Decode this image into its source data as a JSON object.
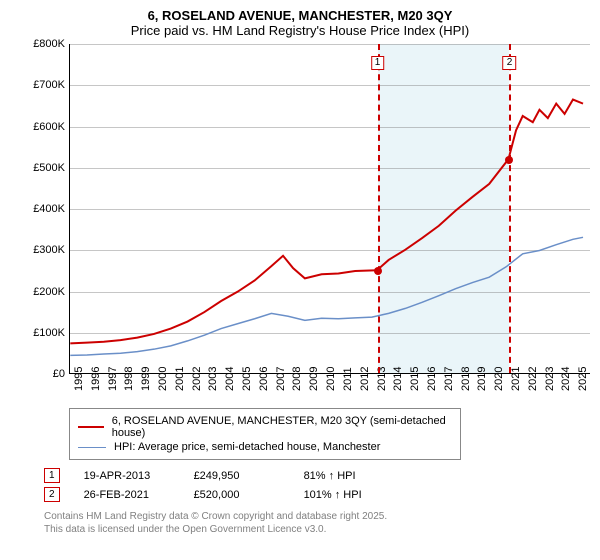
{
  "title": {
    "line1": "6, ROSELAND AVENUE, MANCHESTER, M20 3QY",
    "line2": "Price paid vs. HM Land Registry's House Price Index (HPI)"
  },
  "chart": {
    "type": "line",
    "background_color": "#ffffff",
    "grid_color": "#808080",
    "axis_color": "#000000",
    "xlim": [
      1995,
      2026
    ],
    "ylim": [
      0,
      800000
    ],
    "ytick_step": 100000,
    "ytick_labels": [
      "£0",
      "£100K",
      "£200K",
      "£300K",
      "£400K",
      "£500K",
      "£600K",
      "£700K",
      "£800K"
    ],
    "xticks": [
      1995,
      1996,
      1997,
      1998,
      1999,
      2000,
      2001,
      2002,
      2003,
      2004,
      2005,
      2006,
      2007,
      2008,
      2009,
      2010,
      2011,
      2012,
      2013,
      2014,
      2015,
      2016,
      2017,
      2018,
      2019,
      2020,
      2021,
      2022,
      2023,
      2024,
      2025
    ],
    "highlight_band": {
      "from": 2013.3,
      "to": 2021.15,
      "color": "#d6ecf3"
    },
    "series": [
      {
        "id": "price_paid",
        "label": "6, ROSELAND AVENUE, MANCHESTER, M20 3QY (semi-detached house)",
        "color": "#cc0000",
        "line_width": 2,
        "points": [
          [
            1995,
            72000
          ],
          [
            1996,
            74000
          ],
          [
            1997,
            76000
          ],
          [
            1998,
            80000
          ],
          [
            1999,
            86000
          ],
          [
            2000,
            95000
          ],
          [
            2001,
            108000
          ],
          [
            2002,
            125000
          ],
          [
            2003,
            148000
          ],
          [
            2004,
            175000
          ],
          [
            2005,
            198000
          ],
          [
            2006,
            225000
          ],
          [
            2007,
            260000
          ],
          [
            2007.7,
            285000
          ],
          [
            2008.3,
            255000
          ],
          [
            2009,
            230000
          ],
          [
            2010,
            240000
          ],
          [
            2011,
            242000
          ],
          [
            2012,
            248000
          ],
          [
            2013.3,
            249950
          ],
          [
            2014,
            275000
          ],
          [
            2015,
            300000
          ],
          [
            2016,
            328000
          ],
          [
            2017,
            358000
          ],
          [
            2018,
            395000
          ],
          [
            2019,
            428000
          ],
          [
            2020,
            460000
          ],
          [
            2021.15,
            520000
          ],
          [
            2021.6,
            590000
          ],
          [
            2022,
            625000
          ],
          [
            2022.6,
            610000
          ],
          [
            2023,
            640000
          ],
          [
            2023.5,
            620000
          ],
          [
            2024,
            655000
          ],
          [
            2024.5,
            630000
          ],
          [
            2025,
            665000
          ],
          [
            2025.6,
            655000
          ]
        ]
      },
      {
        "id": "hpi",
        "label": "HPI: Average price, semi-detached house, Manchester",
        "color": "#6a8fc8",
        "line_width": 1.5,
        "points": [
          [
            1995,
            43000
          ],
          [
            1996,
            44000
          ],
          [
            1997,
            46000
          ],
          [
            1998,
            48000
          ],
          [
            1999,
            52000
          ],
          [
            2000,
            58000
          ],
          [
            2001,
            66000
          ],
          [
            2002,
            78000
          ],
          [
            2003,
            92000
          ],
          [
            2004,
            108000
          ],
          [
            2005,
            120000
          ],
          [
            2006,
            132000
          ],
          [
            2007,
            145000
          ],
          [
            2008,
            138000
          ],
          [
            2009,
            128000
          ],
          [
            2010,
            133000
          ],
          [
            2011,
            132000
          ],
          [
            2012,
            134000
          ],
          [
            2013,
            136000
          ],
          [
            2014,
            145000
          ],
          [
            2015,
            157000
          ],
          [
            2016,
            172000
          ],
          [
            2017,
            188000
          ],
          [
            2018,
            205000
          ],
          [
            2019,
            220000
          ],
          [
            2020,
            233000
          ],
          [
            2021,
            258000
          ],
          [
            2022,
            290000
          ],
          [
            2023,
            298000
          ],
          [
            2024,
            312000
          ],
          [
            2025,
            325000
          ],
          [
            2025.6,
            330000
          ]
        ]
      }
    ],
    "vlines": [
      {
        "x": 2013.3,
        "label": "1",
        "marker_y": 249950
      },
      {
        "x": 2021.15,
        "label": "2",
        "marker_y": 520000
      }
    ]
  },
  "legend": {
    "rows": [
      {
        "color": "#cc0000",
        "width": 2,
        "text": "6, ROSELAND AVENUE, MANCHESTER, M20 3QY (semi-detached house)"
      },
      {
        "color": "#6a8fc8",
        "width": 1.5,
        "text": "HPI: Average price, semi-detached house, Manchester"
      }
    ]
  },
  "data_points": [
    {
      "idx": "1",
      "date": "19-APR-2013",
      "price": "£249,950",
      "pct": "81% ↑ HPI"
    },
    {
      "idx": "2",
      "date": "26-FEB-2021",
      "price": "£520,000",
      "pct": "101% ↑ HPI"
    }
  ],
  "footnote": {
    "line1": "Contains HM Land Registry data © Crown copyright and database right 2025.",
    "line2": "This data is licensed under the Open Government Licence v3.0."
  }
}
